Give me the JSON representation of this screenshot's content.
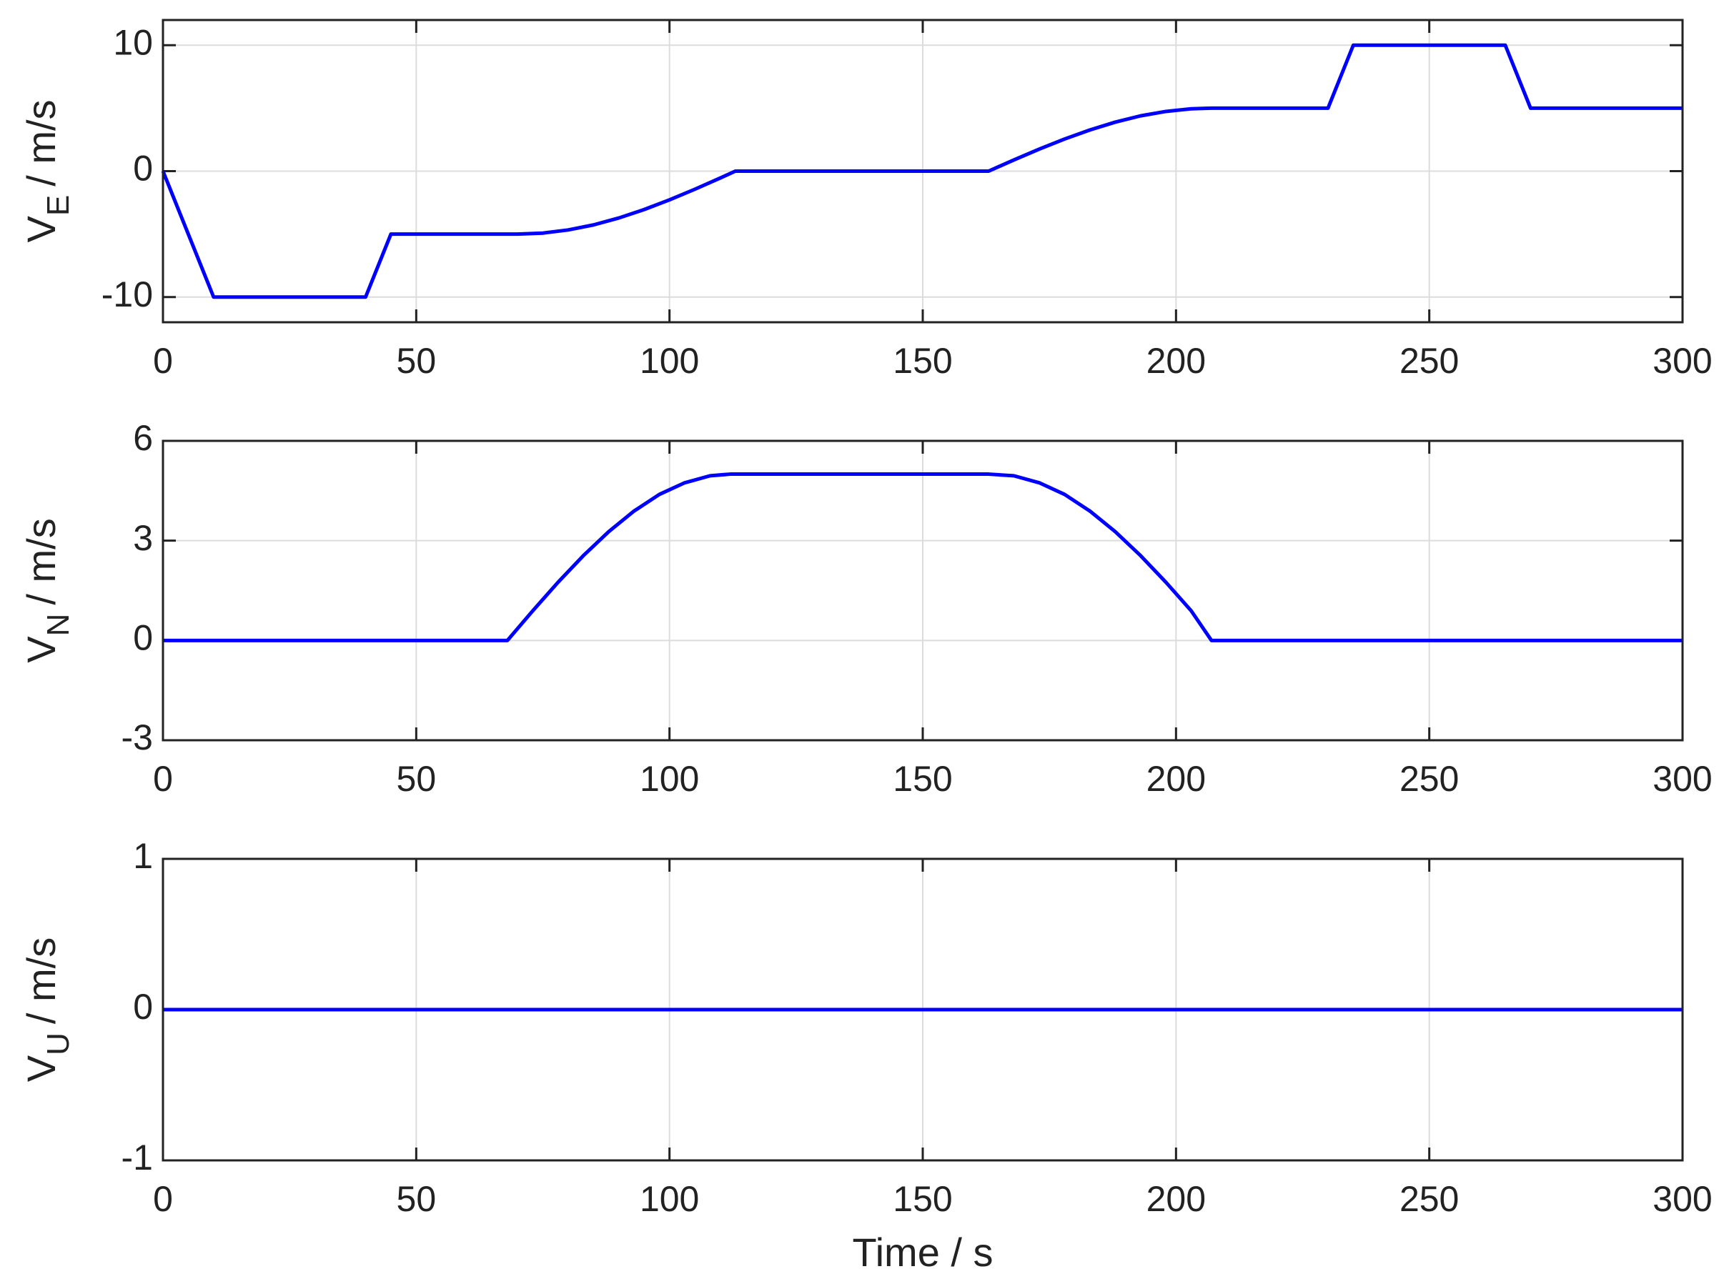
{
  "chart_data": [
    {
      "type": "line",
      "ylabel": {
        "symbol": "V",
        "subscript": "E",
        "suffix": "/ m/s"
      },
      "xlim": [
        0,
        300
      ],
      "xticks": [
        0,
        50,
        100,
        150,
        200,
        250,
        300
      ],
      "ylim": [
        -12,
        12
      ],
      "yticks": [
        -10,
        0,
        10
      ],
      "grid": true,
      "series": [
        {
          "color": "#0000ff",
          "x": [
            0,
            10,
            40,
            45,
            70,
            75,
            80,
            85,
            90,
            95,
            100,
            105,
            110,
            113,
            163,
            168,
            173,
            178,
            183,
            188,
            193,
            198,
            203,
            207,
            230,
            235,
            265,
            270,
            300
          ],
          "values": [
            0,
            -10,
            -10,
            -5,
            -5,
            -4.92,
            -4.67,
            -4.27,
            -3.72,
            -3.05,
            -2.28,
            -1.44,
            -0.55,
            0,
            0,
            0.89,
            1.75,
            2.55,
            3.27,
            3.89,
            4.39,
            4.74,
            4.95,
            5,
            5,
            10,
            10,
            5,
            5
          ]
        }
      ]
    },
    {
      "type": "line",
      "ylabel": {
        "symbol": "V",
        "subscript": "N",
        "suffix": "/ m/s"
      },
      "xlim": [
        0,
        300
      ],
      "xticks": [
        0,
        50,
        100,
        150,
        200,
        250,
        300
      ],
      "ylim": [
        -3,
        6
      ],
      "yticks": [
        -3,
        0,
        3,
        6
      ],
      "grid": true,
      "series": [
        {
          "color": "#0000ff",
          "x": [
            0,
            68,
            73,
            78,
            83,
            88,
            93,
            98,
            103,
            108,
            112,
            163,
            168,
            173,
            178,
            183,
            188,
            193,
            198,
            203,
            207,
            300
          ],
          "values": [
            0,
            0,
            0.89,
            1.75,
            2.55,
            3.27,
            3.89,
            4.39,
            4.74,
            4.95,
            5,
            5,
            4.95,
            4.74,
            4.39,
            3.89,
            3.27,
            2.55,
            1.75,
            0.89,
            0,
            0
          ]
        }
      ]
    },
    {
      "type": "line",
      "ylabel": {
        "symbol": "V",
        "subscript": "U",
        "suffix": "/ m/s"
      },
      "xlabel": "Time / s",
      "xlim": [
        0,
        300
      ],
      "xticks": [
        0,
        50,
        100,
        150,
        200,
        250,
        300
      ],
      "ylim": [
        -1,
        1
      ],
      "yticks": [
        -1,
        0,
        1
      ],
      "grid": true,
      "series": [
        {
          "color": "#0000ff",
          "x": [
            0,
            300
          ],
          "values": [
            0,
            0
          ]
        }
      ]
    }
  ]
}
